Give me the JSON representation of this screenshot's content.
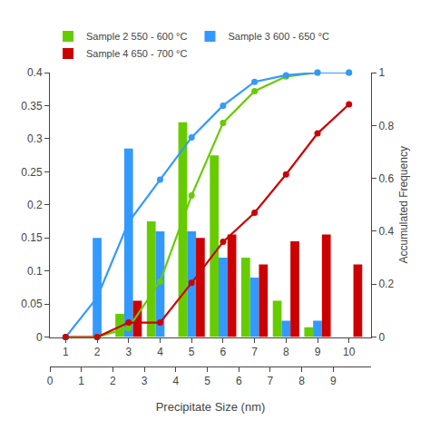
{
  "chart_data": {
    "type": "bar",
    "xlabel": "Precipitate Size (nm)",
    "y2label": "Accumulated Frequency",
    "x": [
      1,
      2,
      3,
      4,
      5,
      6,
      7,
      8,
      9,
      10
    ],
    "xlim": [
      0.5,
      10.7
    ],
    "xticks": [
      1,
      2,
      3,
      4,
      5,
      6,
      7,
      8,
      9,
      10
    ],
    "x2lim": [
      0.5,
      10.7
    ],
    "x2ticks": [
      {
        "value": 0.5,
        "label": "0"
      },
      {
        "value": 1.5,
        "label": "1"
      },
      {
        "value": 2.5,
        "label": "2"
      },
      {
        "value": 3.5,
        "label": "3"
      },
      {
        "value": 4.5,
        "label": "4"
      },
      {
        "value": 5.5,
        "label": "5"
      },
      {
        "value": 6.5,
        "label": "6"
      },
      {
        "value": 7.5,
        "label": "7"
      },
      {
        "value": 8.5,
        "label": "8"
      },
      {
        "value": 9.5,
        "label": "9"
      }
    ],
    "ylim": [
      0,
      0.4
    ],
    "yticks": [
      0,
      0.05,
      0.1,
      0.15,
      0.2,
      0.25,
      0.3,
      0.35,
      0.4
    ],
    "y2lim": [
      0,
      1.0
    ],
    "y2ticks": [
      0,
      0.2,
      0.4,
      0.6,
      0.8,
      1.0
    ],
    "grid": false,
    "legend": "top",
    "series": [
      {
        "name": "Sample 2 550 - 600 °C",
        "type": "bar",
        "color": "#66cc00",
        "values": [
          0.0,
          0.0,
          0.035,
          0.175,
          0.325,
          0.275,
          0.12,
          0.055,
          0.015,
          0.0
        ]
      },
      {
        "name": "Sample 3 600 - 650 °C",
        "type": "bar",
        "color": "#3399ff",
        "values": [
          0.0,
          0.15,
          0.285,
          0.16,
          0.16,
          0.12,
          0.09,
          0.025,
          0.025,
          0.0
        ]
      },
      {
        "name": "Sample 4 650 - 700 °C",
        "type": "bar",
        "color": "#cc0000",
        "values": [
          0.0,
          0.0,
          0.055,
          0.0,
          0.15,
          0.155,
          0.11,
          0.145,
          0.155,
          0.11
        ]
      },
      {
        "type": "line",
        "axis": "y2",
        "marker": "circle",
        "color": "#66cc00",
        "values": [
          0.0,
          0.0,
          0.035,
          0.21,
          0.535,
          0.81,
          0.93,
          0.985,
          1.0,
          1.0
        ]
      },
      {
        "type": "line",
        "axis": "y2",
        "marker": "circle",
        "color": "#3399ff",
        "values": [
          0.0,
          0.15,
          0.435,
          0.595,
          0.755,
          0.875,
          0.965,
          0.99,
          1.0,
          1.0
        ]
      },
      {
        "type": "line",
        "axis": "y2",
        "marker": "circle",
        "color": "#cc0000",
        "values": [
          0.0,
          0.0,
          0.055,
          0.055,
          0.205,
          0.36,
          0.47,
          0.615,
          0.77,
          0.88
        ]
      }
    ]
  }
}
